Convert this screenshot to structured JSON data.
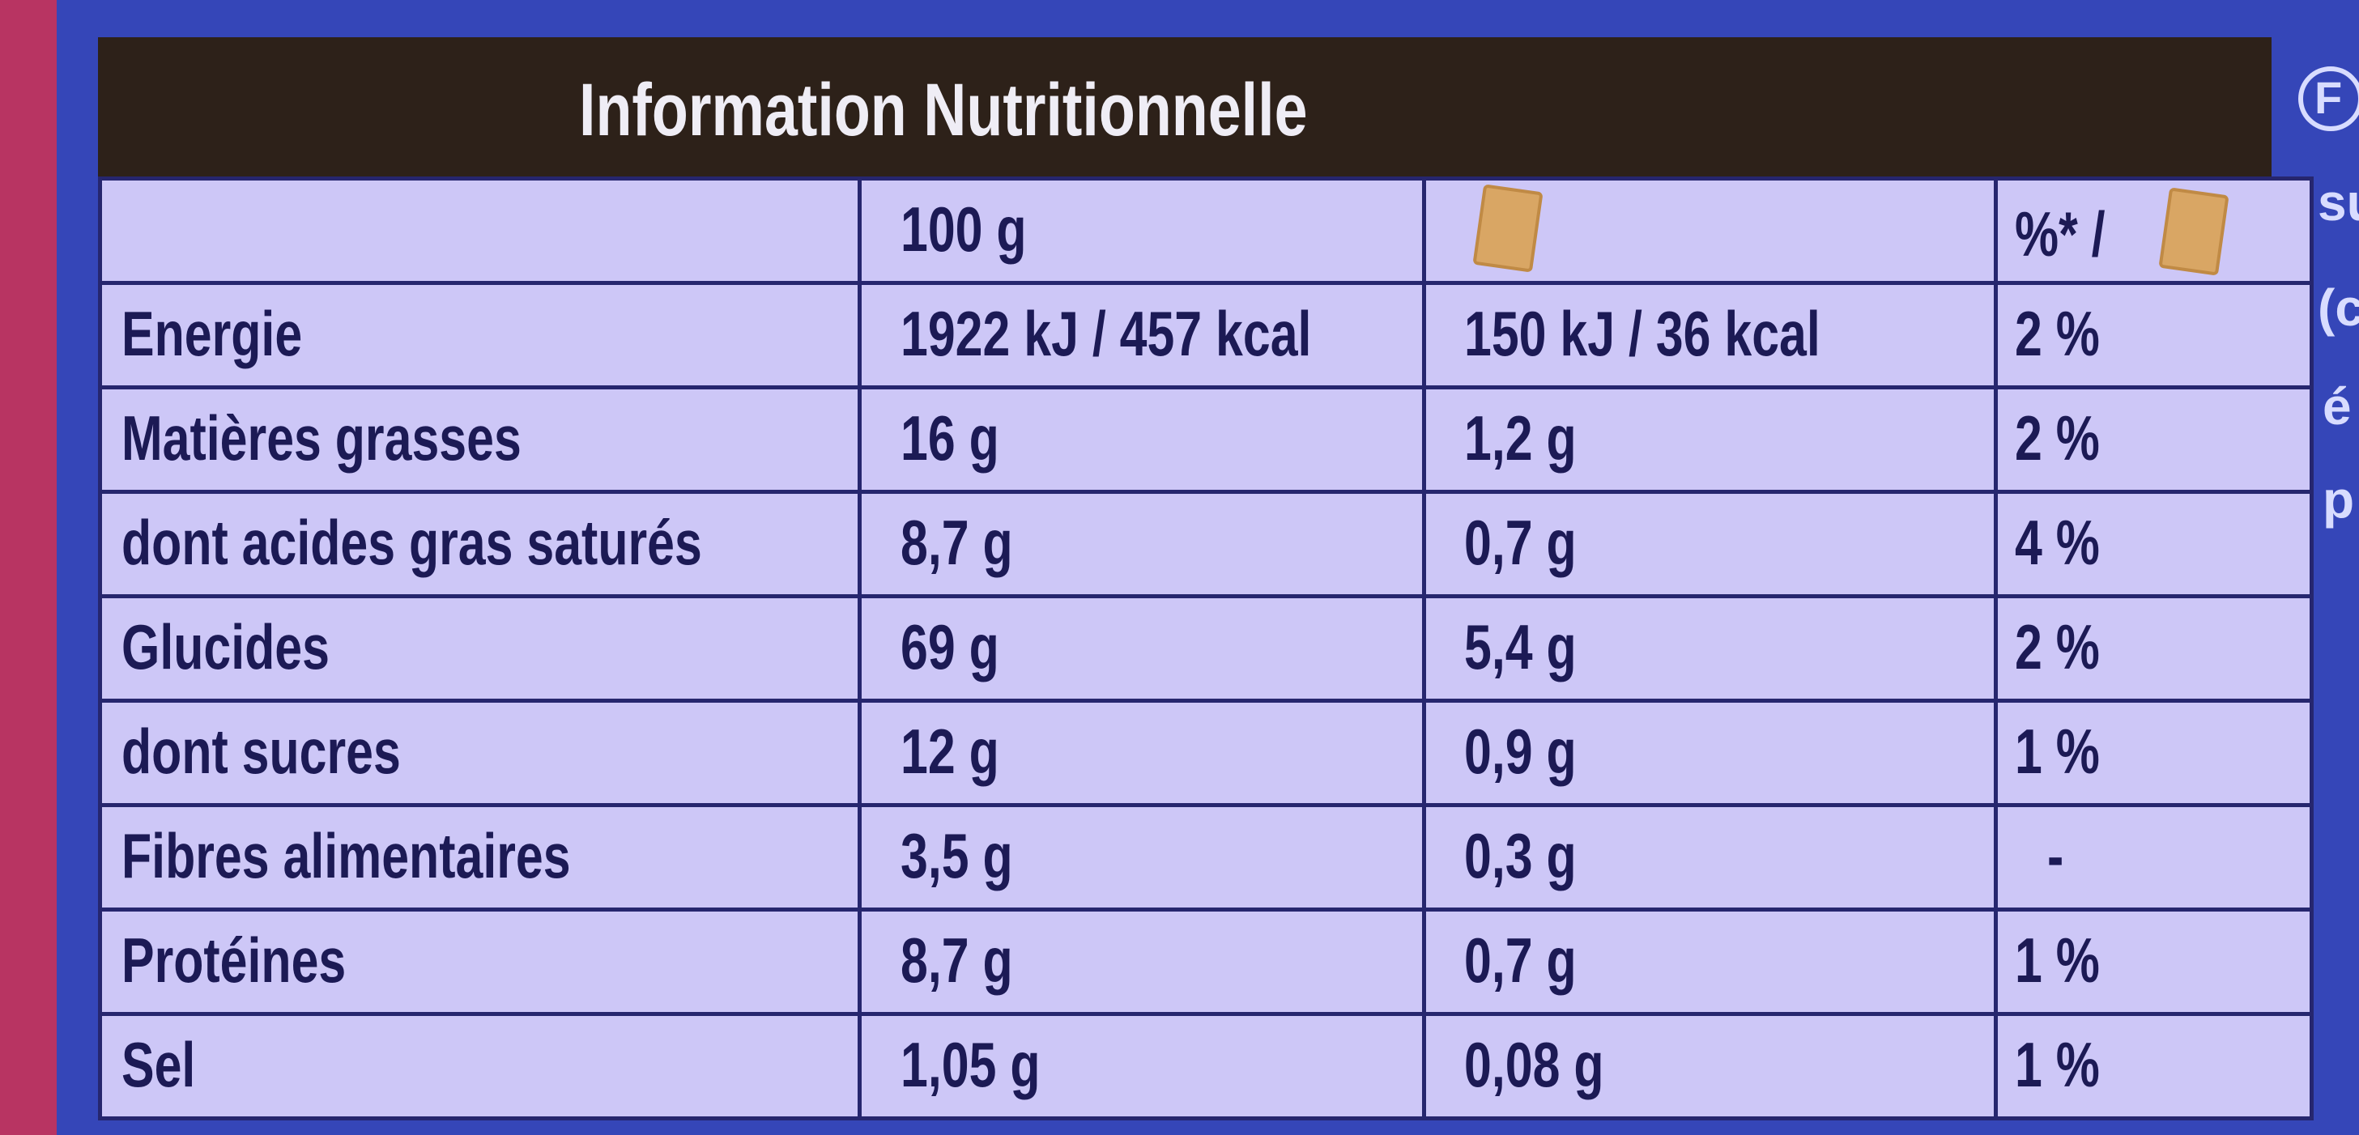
{
  "title": "Information Nutritionnelle",
  "header": {
    "per_100g": "100 g",
    "ri_percent": "%* /"
  },
  "rows": [
    [
      "Energie",
      "1922 kJ / 457 kcal",
      "150 kJ / 36 kcal",
      "2 %"
    ],
    [
      "Matières grasses",
      "16 g",
      "1,2 g",
      "2 %"
    ],
    [
      "dont acides gras saturés",
      "8,7 g",
      "0,7 g",
      "4 %"
    ],
    [
      "Glucides",
      "69 g",
      "5,4 g",
      "2 %"
    ],
    [
      "dont sucres",
      "12 g",
      "0,9 g",
      "1 %"
    ],
    [
      "Fibres alimentaires",
      "3,5 g",
      "0,3 g",
      "-"
    ],
    [
      "Protéines",
      "8,7 g",
      "0,7 g",
      "1 %"
    ],
    [
      "Sel",
      "1,05 g",
      "0,08 g",
      "1 %"
    ]
  ],
  "margin_logo": "F",
  "margin_text": [
    "su",
    "(c",
    "é",
    "p"
  ]
}
